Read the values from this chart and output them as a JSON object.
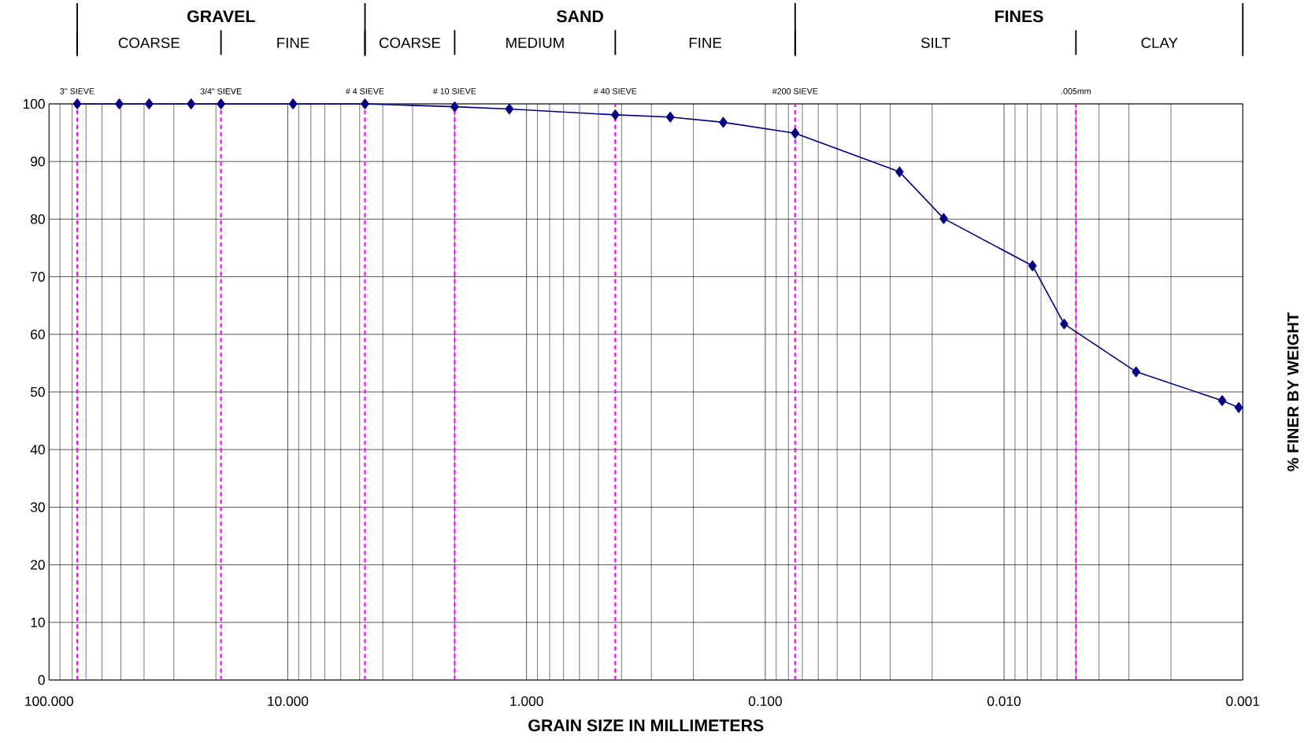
{
  "chart_data": {
    "type": "line",
    "xlabel": "GRAIN SIZE IN MILLIMETERS",
    "ylabel": "% FINER BY WEIGHT",
    "x": [
      76.2,
      50.8,
      38.1,
      25.4,
      19.05,
      9.5,
      4.75,
      2.0,
      1.18,
      0.425,
      0.25,
      0.15,
      0.075,
      0.0274,
      0.0179,
      0.0076,
      0.0056,
      0.0028,
      0.00122,
      0.00104
    ],
    "series": [
      {
        "color": "#000080",
        "values": [
          100,
          100,
          100,
          100,
          100,
          100,
          100,
          99.5,
          99.1,
          98.1,
          97.7,
          96.8,
          94.9,
          88.2,
          80.1,
          71.9,
          61.8,
          53.5,
          48.5,
          47.3
        ]
      }
    ],
    "xlim": [
      100,
      0.001
    ],
    "ylim": [
      0,
      100
    ],
    "xticks": [
      {
        "value": 100,
        "label": "100.000"
      },
      {
        "value": 10,
        "label": "10.000"
      },
      {
        "value": 1,
        "label": "1.000"
      },
      {
        "value": 0.1,
        "label": "0.100"
      },
      {
        "value": 0.01,
        "label": "0.010"
      },
      {
        "value": 0.001,
        "label": "0.001"
      }
    ],
    "yticks": [
      0,
      10,
      20,
      30,
      40,
      50,
      60,
      70,
      80,
      90,
      100
    ],
    "log": "x",
    "grid": true,
    "marker": "diamond",
    "line_style": "solid",
    "ref_lines": [
      {
        "axis": "x",
        "value": 76.2,
        "label": "3\" SIEVE",
        "color": "#ff00ff",
        "line_style": "dashed"
      },
      {
        "axis": "x",
        "value": 19.05,
        "label": "3/4\" SIEVE",
        "color": "#ff00ff",
        "line_style": "dashed"
      },
      {
        "axis": "x",
        "value": 4.75,
        "label": "# 4 SIEVE",
        "color": "#ff00ff",
        "line_style": "dashed"
      },
      {
        "axis": "x",
        "value": 2.0,
        "label": "# 10 SIEVE",
        "color": "#ff00ff",
        "line_style": "dashed"
      },
      {
        "axis": "x",
        "value": 0.425,
        "label": "# 40 SIEVE",
        "color": "#ff00ff",
        "line_style": "dashed"
      },
      {
        "axis": "x",
        "value": 0.075,
        "label": "#200 SIEVE",
        "color": "#ff00ff",
        "line_style": "dashed"
      },
      {
        "axis": "x",
        "value": 0.005,
        "label": ".005mm",
        "color": "#ff00ff",
        "line_style": "dashed"
      }
    ],
    "annotations": [
      "GRAVEL",
      "SAND",
      "FINES",
      "COARSE",
      "FINE",
      "COARSE",
      "MEDIUM",
      "FINE",
      "SILT",
      "CLAY"
    ]
  }
}
